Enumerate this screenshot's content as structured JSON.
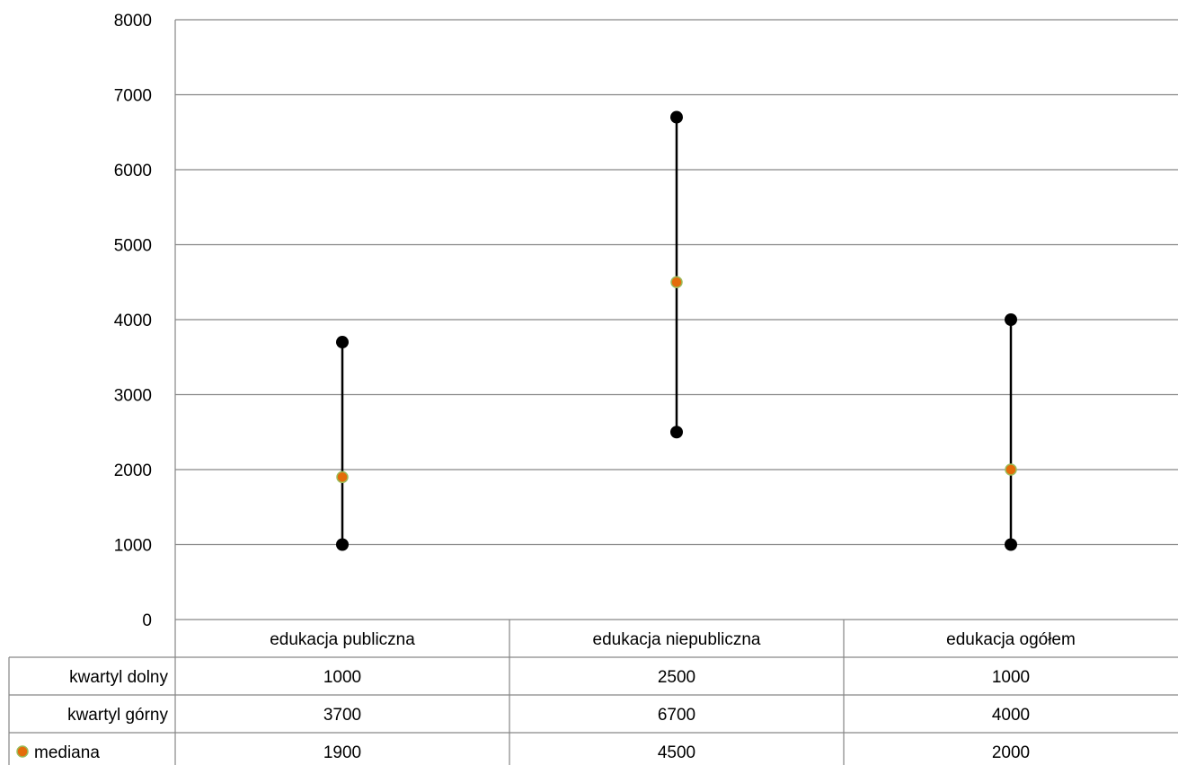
{
  "chart_data": {
    "type": "table",
    "categories": [
      "edukacja publiczna",
      "edukacja niepubliczna",
      "edukacja ogółem"
    ],
    "series": [
      {
        "name": "kwartyl dolny",
        "values": [
          1000,
          2500,
          1000
        ],
        "marker": "none"
      },
      {
        "name": "kwartyl górny",
        "values": [
          3700,
          6700,
          4000
        ],
        "marker": "none"
      },
      {
        "name": "mediana",
        "values": [
          1900,
          4500,
          2000
        ],
        "marker": "circle",
        "color": "#e46c0a",
        "edge_color": "#9bbb59"
      }
    ],
    "range_markers": {
      "color": "#000000"
    },
    "ylim": [
      0,
      8000
    ],
    "yticks": [
      0,
      1000,
      2000,
      3000,
      4000,
      5000,
      6000,
      7000,
      8000
    ],
    "grid": true,
    "legend": "data-table"
  }
}
